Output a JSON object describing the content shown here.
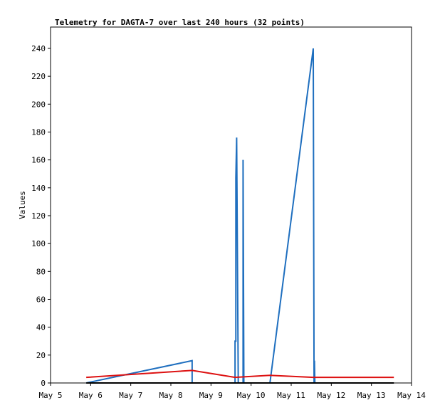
{
  "chart_data": {
    "type": "line",
    "title": "Telemetry for DAGTA-7 over last 240 hours (32 points)",
    "y_label": "Values",
    "xlim": [
      5,
      14
    ],
    "xticks": [
      {
        "value": 5,
        "label": "May 5"
      },
      {
        "value": 6,
        "label": "May 6"
      },
      {
        "value": 7,
        "label": "May 7"
      },
      {
        "value": 8,
        "label": "May 8"
      },
      {
        "value": 9,
        "label": "May 9"
      },
      {
        "value": 10,
        "label": "May 10"
      },
      {
        "value": 11,
        "label": "May 11"
      },
      {
        "value": 12,
        "label": "May 12"
      },
      {
        "value": 13,
        "label": "May 13"
      },
      {
        "value": 14,
        "label": "May 14"
      }
    ],
    "ylim": [
      0,
      255.3
    ],
    "yticks": [
      0,
      20,
      40,
      60,
      80,
      100,
      120,
      140,
      160,
      180,
      200,
      220,
      240
    ],
    "series": [
      {
        "color": "#1f6fbf",
        "x": [
          5.89,
          8.53,
          8.53,
          9.6,
          9.6,
          9.62,
          9.62,
          9.64,
          9.66,
          9.68,
          9.8,
          9.8,
          9.82,
          10.47,
          11.55,
          11.57,
          11.58,
          11.59
        ],
        "values": [
          0,
          16,
          0,
          0,
          30,
          30,
          147,
          176,
          88,
          0,
          0,
          160,
          0,
          0,
          240,
          0,
          16,
          0
        ]
      },
      {
        "color": "#000000",
        "x": [
          5.89,
          13.56
        ],
        "values": [
          0,
          0
        ]
      },
      {
        "color": "#dd1111",
        "x": [
          5.89,
          8.53,
          9.6,
          10.47,
          11.55,
          13.56
        ],
        "values": [
          4,
          9,
          4,
          5.5,
          4,
          4
        ]
      }
    ]
  }
}
